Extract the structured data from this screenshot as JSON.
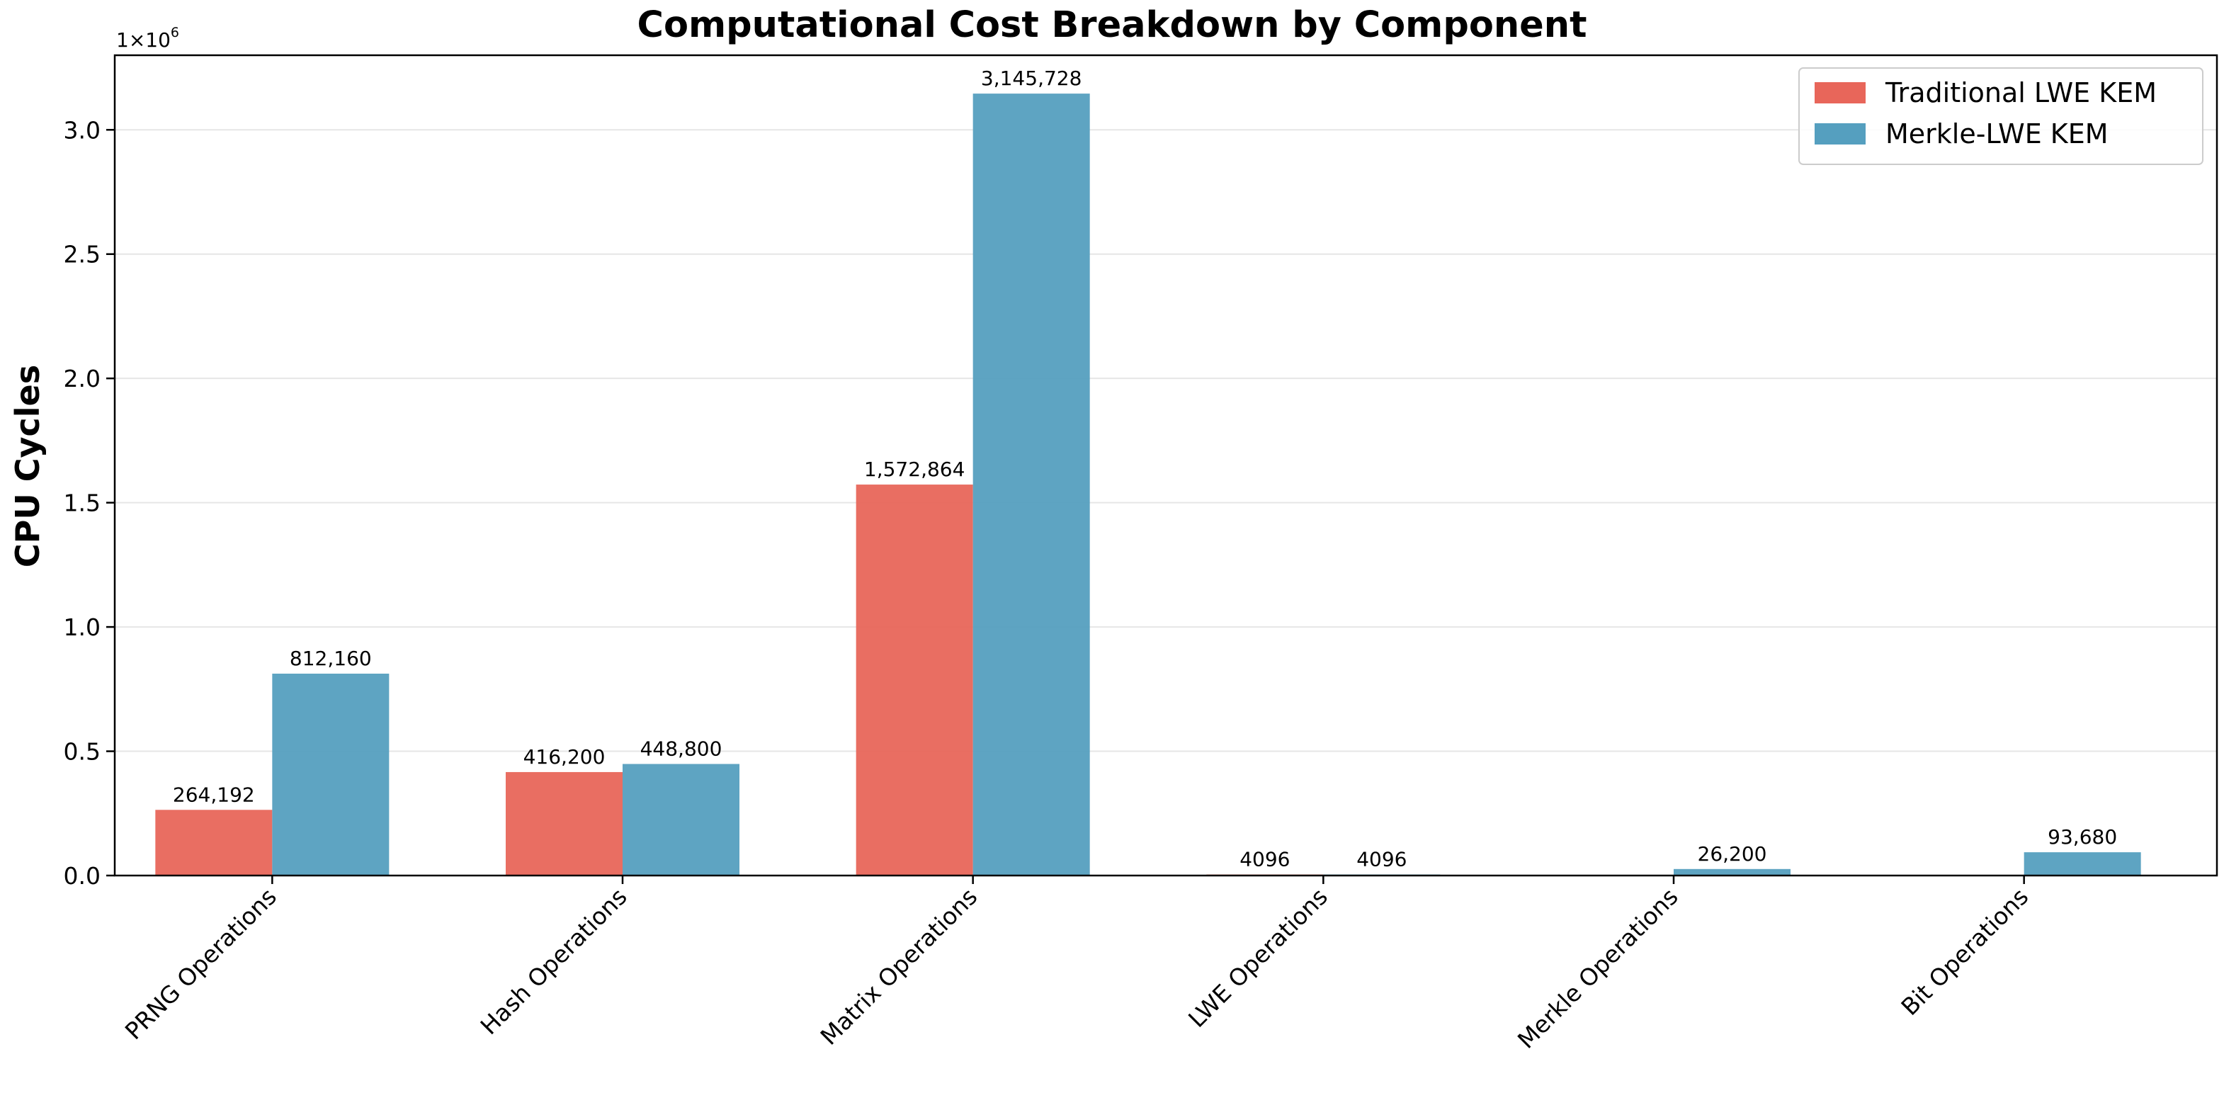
{
  "chart_data": {
    "type": "bar",
    "title": "Computational Cost Breakdown by Component",
    "xlabel": "",
    "ylabel": "CPU Cycles",
    "y_scale_base": "1×10",
    "y_scale_exponent": "6",
    "y_scale_factor": 1000000,
    "ylim": [
      0,
      3300000
    ],
    "yticks": [
      0,
      500000,
      1000000,
      1500000,
      2000000,
      2500000,
      3000000
    ],
    "ytick_labels": [
      "0.0",
      "0.5",
      "1.0",
      "1.5",
      "2.0",
      "2.5",
      "3.0"
    ],
    "categories": [
      "PRNG Operations",
      "Hash Operations",
      "Matrix Operations",
      "LWE Operations",
      "Merkle Operations",
      "Bit Operations"
    ],
    "series": [
      {
        "name": "Traditional LWE KEM",
        "color": "#e8665a",
        "values": [
          264192,
          416200,
          1572864,
          4096,
          0,
          0
        ],
        "labels": [
          "264,192",
          "416,200",
          "1,572,864",
          "4096",
          "",
          ""
        ]
      },
      {
        "name": "Merkle-LWE KEM",
        "color": "#559fbf",
        "values": [
          812160,
          448800,
          3145728,
          4096,
          26200,
          93680
        ],
        "labels": [
          "812,160",
          "448,800",
          "3,145,728",
          "4096",
          "26,200",
          "93,680"
        ]
      }
    ],
    "grid": "y",
    "legend_position": "top-right"
  }
}
